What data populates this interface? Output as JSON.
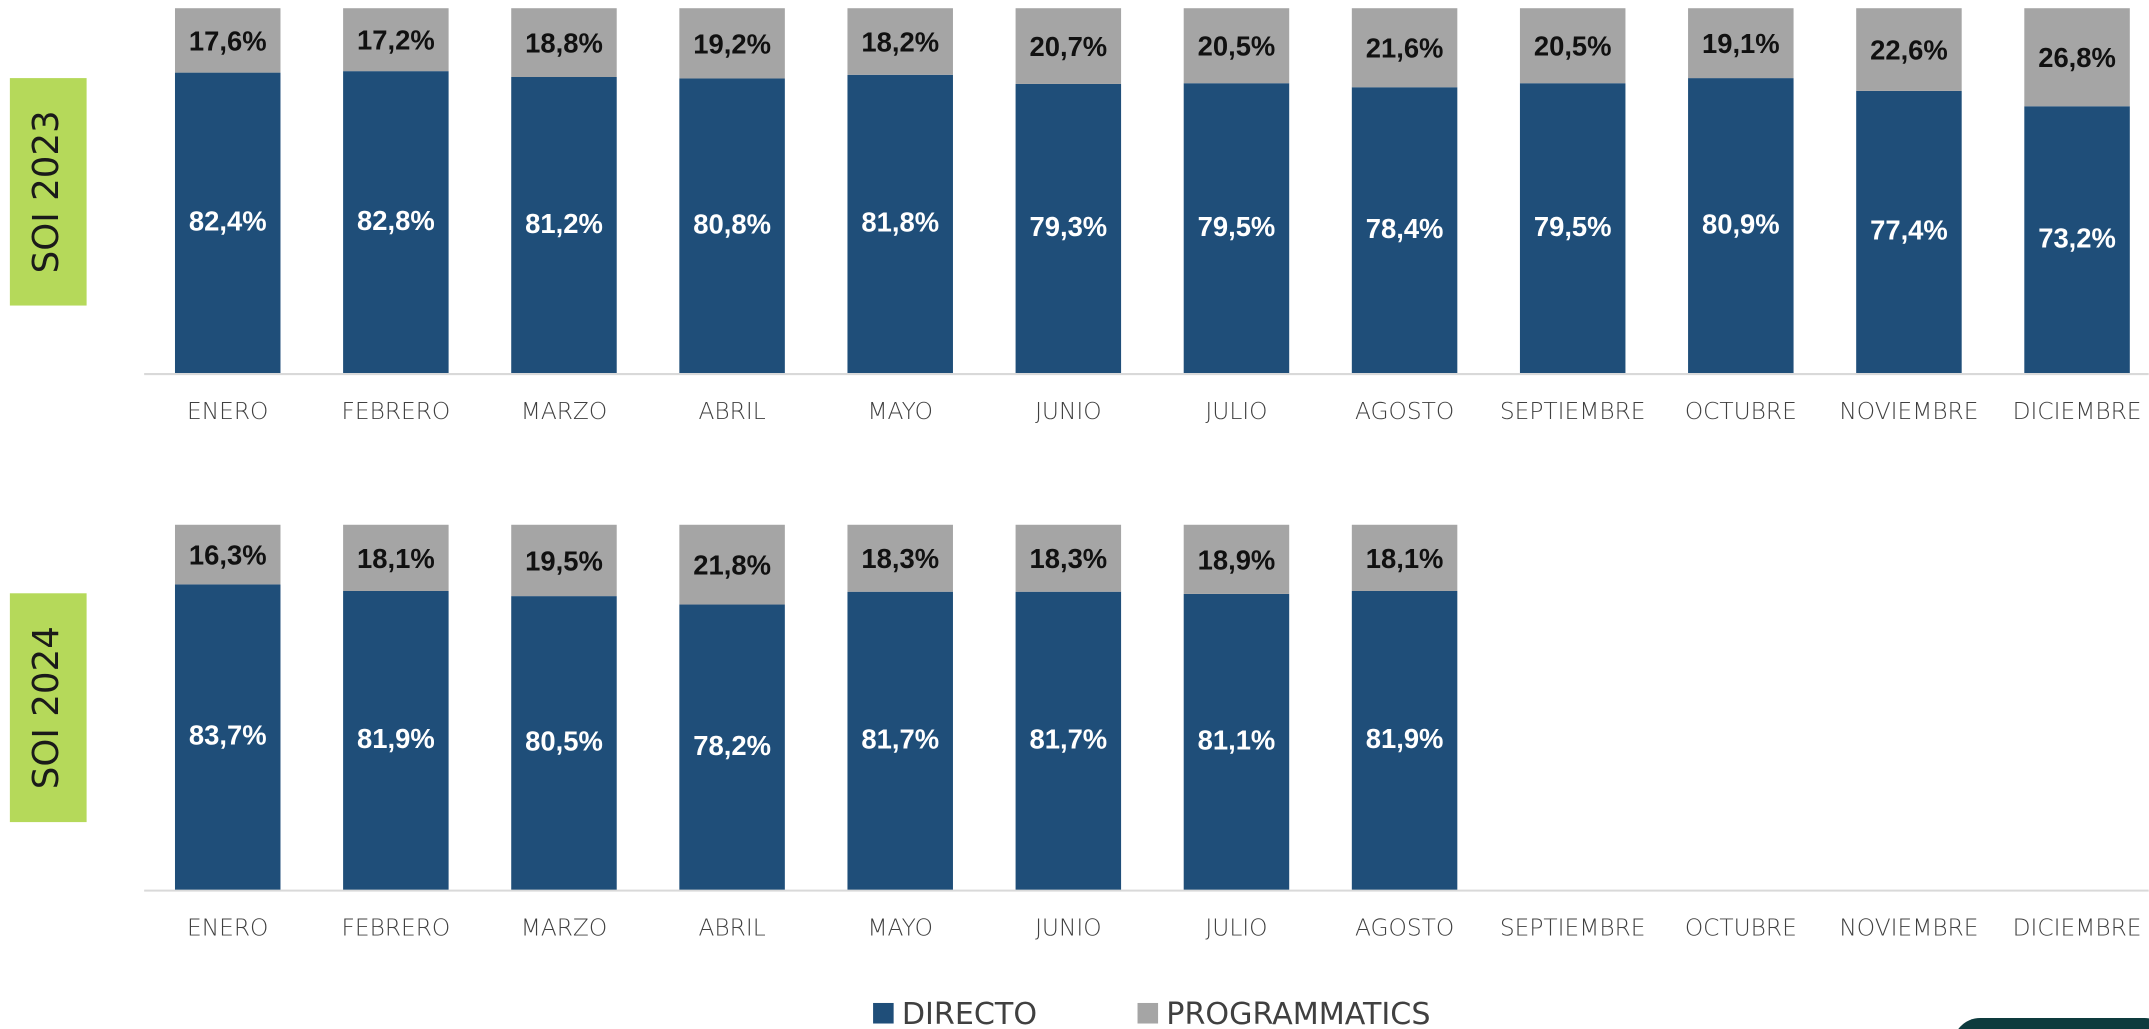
{
  "chart_data": [
    {
      "type": "bar",
      "stacked": true,
      "title": "SOI 2023",
      "categories": [
        "ENERO",
        "FEBRERO",
        "MARZO",
        "ABRIL",
        "MAYO",
        "JUNIO",
        "JULIO",
        "AGOSTO",
        "SEPTIEMBRE",
        "OCTUBRE",
        "NOVIEMBRE",
        "DICIEMBRE"
      ],
      "ylim": [
        0,
        100
      ],
      "series": [
        {
          "name": "DIRECTO",
          "color": "#1f4e79",
          "values": [
            82.4,
            82.8,
            81.2,
            80.8,
            81.8,
            79.3,
            79.5,
            78.4,
            79.5,
            80.9,
            77.4,
            73.2
          ],
          "value_labels": [
            "82,4%",
            "82,8%",
            "81,2%",
            "80,8%",
            "81,8%",
            "79,3%",
            "79,5%",
            "78,4%",
            "79,5%",
            "80,9%",
            "77,4%",
            "73,2%"
          ]
        },
        {
          "name": "PROGRAMMATICS",
          "color": "#a5a5a5",
          "values": [
            17.6,
            17.2,
            18.8,
            19.2,
            18.2,
            20.7,
            20.5,
            21.6,
            20.5,
            19.1,
            22.6,
            26.8
          ],
          "value_labels": [
            "17,6%",
            "17,2%",
            "18,8%",
            "19,2%",
            "18,2%",
            "20,7%",
            "20,5%",
            "21,6%",
            "20,5%",
            "19,1%",
            "22,6%",
            "26,8%"
          ]
        }
      ]
    },
    {
      "type": "bar",
      "stacked": true,
      "title": "SOI 2024",
      "categories": [
        "ENERO",
        "FEBRERO",
        "MARZO",
        "ABRIL",
        "MAYO",
        "JUNIO",
        "JULIO",
        "AGOSTO",
        "SEPTIEMBRE",
        "OCTUBRE",
        "NOVIEMBRE",
        "DICIEMBRE"
      ],
      "ylim": [
        0,
        100
      ],
      "series": [
        {
          "name": "DIRECTO",
          "color": "#1f4e79",
          "values": [
            83.7,
            81.9,
            80.5,
            78.2,
            81.7,
            81.7,
            81.1,
            81.9,
            null,
            null,
            null,
            null
          ],
          "value_labels": [
            "83,7%",
            "81,9%",
            "80,5%",
            "78,2%",
            "81,7%",
            "81,7%",
            "81,1%",
            "81,9%",
            null,
            null,
            null,
            null
          ]
        },
        {
          "name": "PROGRAMMATICS",
          "color": "#a5a5a5",
          "values": [
            16.3,
            18.1,
            19.5,
            21.8,
            18.3,
            18.3,
            18.9,
            18.1,
            null,
            null,
            null,
            null
          ],
          "value_labels": [
            "16,3%",
            "18,1%",
            "19,5%",
            "21,8%",
            "18,3%",
            "18,3%",
            "18,9%",
            "18,1%",
            null,
            null,
            null,
            null
          ]
        }
      ]
    }
  ]
}
